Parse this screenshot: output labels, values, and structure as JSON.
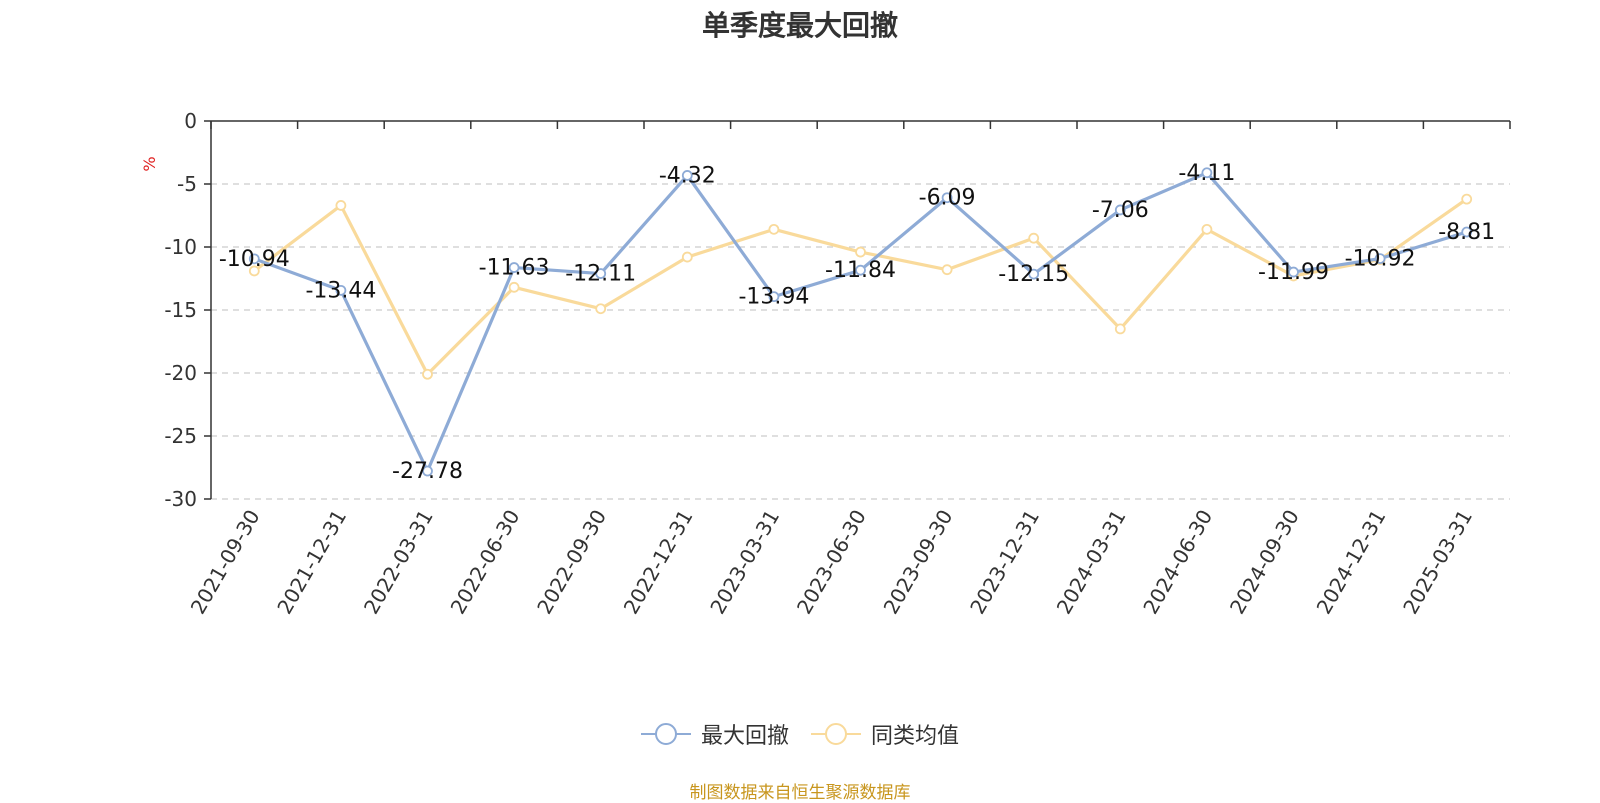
{
  "chart_data": {
    "type": "line",
    "title": "单季度最大回撤",
    "ylabel": "%",
    "ylim": [
      -30,
      0
    ],
    "yticks": [
      0,
      -5,
      -10,
      -15,
      -20,
      -25,
      -30
    ],
    "grid": true,
    "legend_position": "bottom",
    "categories": [
      "2021-09-30",
      "2021-12-31",
      "2022-03-31",
      "2022-06-30",
      "2022-09-30",
      "2022-12-31",
      "2023-03-31",
      "2023-06-30",
      "2023-09-30",
      "2023-12-31",
      "2024-03-31",
      "2024-06-30",
      "2024-09-30",
      "2024-12-31",
      "2025-03-31"
    ],
    "series": [
      {
        "name": "最大回撤",
        "color": "#8eabd6",
        "values": [
          -10.94,
          -13.44,
          -27.78,
          -11.63,
          -12.11,
          -4.32,
          -13.94,
          -11.84,
          -6.09,
          -12.15,
          -7.06,
          -4.11,
          -11.99,
          -10.92,
          -8.81
        ],
        "labels": [
          "-10.94",
          "-13.44",
          "-27.78",
          "-11.63",
          "-12.11",
          "-4.32",
          "-13.94",
          "-11.84",
          "-6.09",
          "-12.15",
          "-7.06",
          "-4.11",
          "-11.99",
          "-10.92",
          "-8.81"
        ]
      },
      {
        "name": "同类均值",
        "color": "#f9da9b",
        "values": [
          -11.9,
          -6.7,
          -20.1,
          -13.2,
          -14.9,
          -10.8,
          -8.6,
          -10.4,
          -11.8,
          -9.3,
          -16.5,
          -8.6,
          -12.3,
          -11.0,
          -6.2
        ]
      }
    ]
  },
  "footer": {
    "source": "制图数据来自恒生聚源数据库",
    "source_color": "#c8961e"
  },
  "colors": {
    "axis": "#333333",
    "grid": "#cccccc",
    "ylabel": "#e02020"
  }
}
